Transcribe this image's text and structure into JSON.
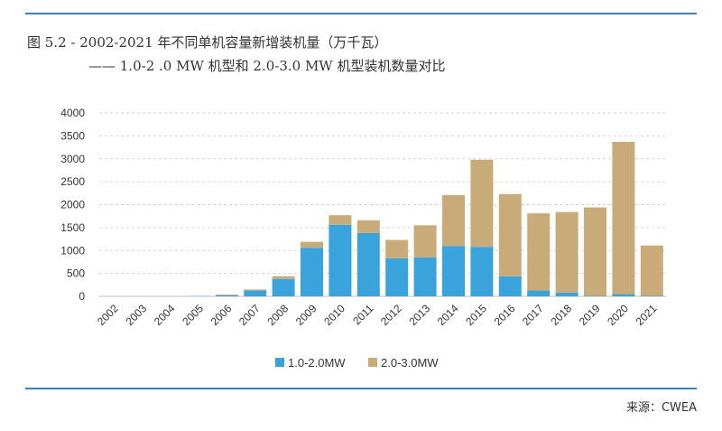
{
  "header": {
    "title_line1": "图 5.2 - 2002-2021 年不同单机容量新增装机量（万千瓦）",
    "title_line2": "—— 1.0-2 .0 MW 机型和 2.0-3.0 MW 机型装机数量对比"
  },
  "footer": {
    "source": "来源：CWEA"
  },
  "colors": {
    "rule": "#3f7fc1",
    "series1": "#3aa3dc",
    "series2": "#c9ab7a",
    "grid": "#d6d6d6"
  },
  "chart_data": {
    "type": "bar",
    "stacked": true,
    "categories": [
      "2002",
      "2003",
      "2004",
      "2005",
      "2006",
      "2007",
      "2008",
      "2009",
      "2010",
      "2011",
      "2012",
      "2013",
      "2014",
      "2015",
      "2016",
      "2017",
      "2018",
      "2019",
      "2020",
      "2021"
    ],
    "series": [
      {
        "name": "1.0-2.0MW",
        "color": "#3aa3dc",
        "values": [
          0,
          0,
          0,
          5,
          20,
          130,
          380,
          1060,
          1560,
          1380,
          830,
          850,
          1100,
          1080,
          440,
          130,
          80,
          10,
          50,
          10
        ]
      },
      {
        "name": "2.0-3.0MW",
        "color": "#c9ab7a",
        "values": [
          0,
          0,
          0,
          0,
          20,
          20,
          60,
          130,
          210,
          280,
          400,
          700,
          1110,
          1900,
          1790,
          1680,
          1760,
          1930,
          3320,
          1100
        ]
      }
    ],
    "ylim": [
      0,
      4000
    ],
    "yticks": [
      0,
      500,
      1000,
      1500,
      2000,
      2500,
      3000,
      3500,
      4000
    ],
    "grid": true,
    "legend": "bottom"
  }
}
